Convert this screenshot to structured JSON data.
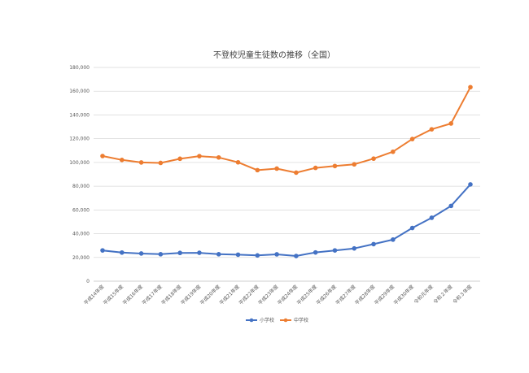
{
  "chart_data": {
    "type": "line",
    "title": "不登校児童生徒数の推移（全国）",
    "categories": [
      "平成14年度",
      "平成15年度",
      "平成16年度",
      "平成17年度",
      "平成18年度",
      "平成19年度",
      "平成20年度",
      "平成21年度",
      "平成22年度",
      "平成23年度",
      "平成24年度",
      "平成25年度",
      "平成26年度",
      "平成27年度",
      "平成28年度",
      "平成29年度",
      "平成30年度",
      "令和元年度",
      "令和２年度",
      "令和３年度"
    ],
    "series": [
      {
        "name": "小学校",
        "color": "#4472C4",
        "values": [
          25900,
          24100,
          23300,
          22700,
          23800,
          23900,
          22700,
          22300,
          21700,
          22600,
          21200,
          24200,
          25900,
          27600,
          31200,
          35000,
          44800,
          53400,
          63400,
          81500
        ]
      },
      {
        "name": "中学校",
        "color": "#ED7D31",
        "values": [
          105400,
          102100,
          100000,
          99600,
          103100,
          105300,
          104200,
          100100,
          93500,
          94800,
          91400,
          95400,
          97000,
          98400,
          103200,
          109000,
          119700,
          127900,
          132800,
          163400
        ]
      }
    ],
    "ylim": [
      0,
      180000
    ],
    "yticks": [
      0,
      20000,
      40000,
      60000,
      80000,
      100000,
      120000,
      140000,
      160000,
      180000
    ],
    "ytick_labels": [
      "0",
      "20,000",
      "40,000",
      "60,000",
      "80,000",
      "100,000",
      "120,000",
      "140,000",
      "160,000",
      "180,000"
    ],
    "grid": true,
    "markers": true,
    "legend": "bottom-center"
  }
}
